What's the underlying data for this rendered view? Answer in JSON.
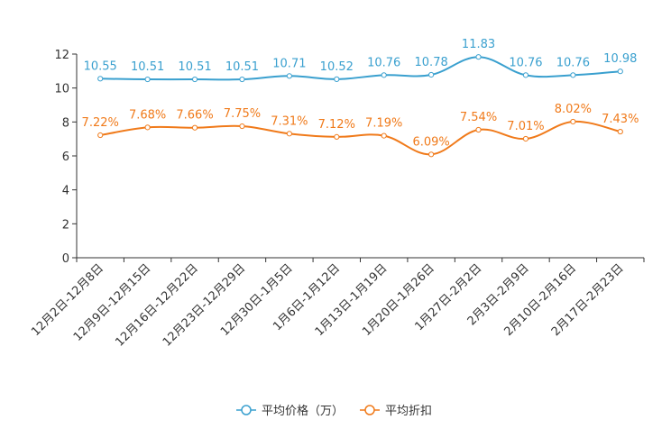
{
  "chart_data": {
    "type": "line",
    "categories": [
      "12月2日-12月8日",
      "12月9日-12月15日",
      "12月16日-12月22日",
      "12月23日-12月29日",
      "12月30日-1月5日",
      "1月6日-1月12日",
      "1月13日-1月19日",
      "1月20日-1月26日",
      "1月27日-2月2日",
      "2月3日-2月9日",
      "2月10日-2月16日",
      "2月17日-2月23日"
    ],
    "series": [
      {
        "name": "平均价格（万）",
        "color": "#3aa0cf",
        "values": [
          10.55,
          10.51,
          10.51,
          10.51,
          10.71,
          10.52,
          10.76,
          10.78,
          11.83,
          10.76,
          10.76,
          10.98
        ],
        "labels": [
          "10.55",
          "10.51",
          "10.51",
          "10.51",
          "10.71",
          "10.52",
          "10.76",
          "10.78",
          "11.83",
          "10.76",
          "10.76",
          "10.98"
        ]
      },
      {
        "name": "平均折扣",
        "color": "#f07a1a",
        "values": [
          7.22,
          7.68,
          7.66,
          7.75,
          7.31,
          7.12,
          7.19,
          6.09,
          7.54,
          7.01,
          8.02,
          7.43
        ],
        "labels": [
          "7.22%",
          "7.68%",
          "7.66%",
          "7.75%",
          "7.31%",
          "7.12%",
          "7.19%",
          "6.09%",
          "7.54%",
          "7.01%",
          "8.02%",
          "7.43%"
        ]
      }
    ],
    "yticks": [
      "0",
      "2",
      "4",
      "6",
      "8",
      "10",
      "12"
    ],
    "ylim": [
      0,
      12
    ],
    "legend_position": "bottom-center",
    "title": "",
    "xlabel": "",
    "ylabel": ""
  }
}
